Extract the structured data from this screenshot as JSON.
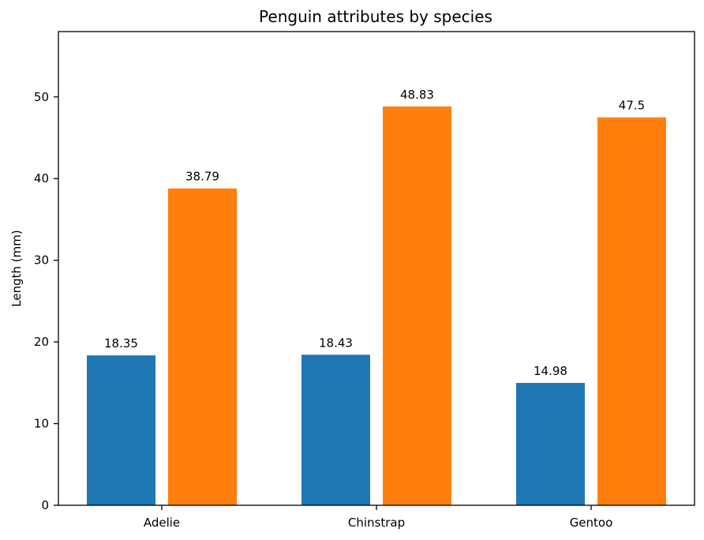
{
  "chart_data": {
    "type": "bar",
    "title": "Penguin attributes by species",
    "xlabel": "",
    "ylabel": "Length (mm)",
    "categories": [
      "Adelie",
      "Chinstrap",
      "Gentoo"
    ],
    "series": [
      {
        "values": [
          18.35,
          18.43,
          14.98
        ],
        "color": "#1f77b4"
      },
      {
        "values": [
          38.79,
          48.83,
          47.5
        ],
        "color": "#ff7f0e"
      }
    ],
    "data_labels": [
      [
        "18.35",
        "18.43",
        "14.98"
      ],
      [
        "38.79",
        "48.83",
        "47.5"
      ]
    ],
    "ylim": [
      0,
      58
    ],
    "yticks": [
      0,
      10,
      20,
      30,
      40,
      50
    ],
    "grid": false,
    "legend": "none"
  }
}
